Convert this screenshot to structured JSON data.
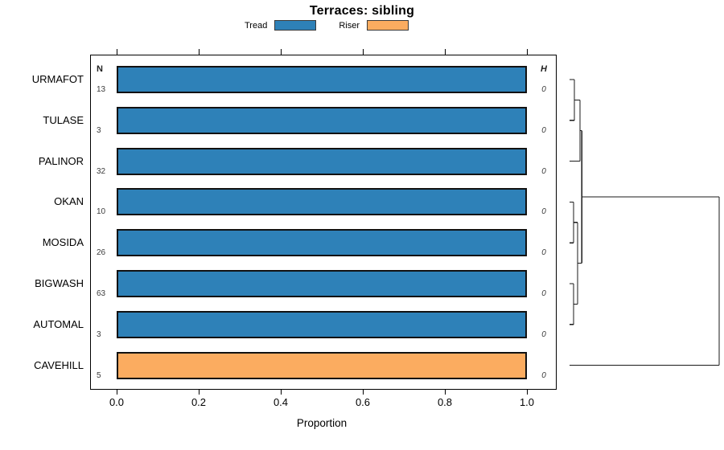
{
  "title": "Terraces: sibling",
  "legend": {
    "items": [
      {
        "label": "Tread",
        "color": "#2E81B8"
      },
      {
        "label": "Riser",
        "color": "#FBAC60"
      }
    ]
  },
  "table": {
    "n_header": "N",
    "h_header": "H"
  },
  "axis": {
    "xlabel": "Proportion",
    "xtick_labels": [
      "0.0",
      "0.2",
      "0.4",
      "0.6",
      "0.8",
      "1.0"
    ]
  },
  "chart_data": {
    "type": "bar",
    "orientation": "horizontal_stacked_proportion",
    "title": "Terraces: sibling",
    "xlabel": "Proportion",
    "xlim": [
      0.0,
      1.0
    ],
    "xticks": [
      0.0,
      0.2,
      0.4,
      0.6,
      0.8,
      1.0
    ],
    "grid": false,
    "legend_position": "top-center",
    "categories": [
      "URMAFOT",
      "TULASE",
      "PALINOR",
      "OKAN",
      "MOSIDA",
      "BIGWASH",
      "AUTOMAL",
      "CAVEHILL"
    ],
    "n_values": [
      13,
      3,
      32,
      10,
      26,
      63,
      3,
      5
    ],
    "h_values": [
      0,
      0,
      0,
      0,
      0,
      0,
      0,
      0
    ],
    "series": [
      {
        "name": "Tread",
        "color": "#2E81B8",
        "values": [
          1.0,
          1.0,
          1.0,
          1.0,
          1.0,
          1.0,
          1.0,
          0.0
        ]
      },
      {
        "name": "Riser",
        "color": "#FBAC60",
        "values": [
          0.0,
          0.0,
          0.0,
          0.0,
          0.0,
          0.0,
          0.0,
          1.0
        ]
      }
    ],
    "bar_border_color": "#111111",
    "dendrogram": {
      "position": "right-margin",
      "merges": [
        {
          "id": "m1",
          "children": [
            "URMAFOT",
            "TULASE"
          ],
          "height": 0.022
        },
        {
          "id": "m2",
          "children": [
            "m1",
            "PALINOR"
          ],
          "height": 0.06
        },
        {
          "id": "m3",
          "children": [
            "OKAN",
            "MOSIDA"
          ],
          "height": 0.016
        },
        {
          "id": "m4",
          "children": [
            "BIGWASH",
            "AUTOMAL"
          ],
          "height": 0.016
        },
        {
          "id": "m5",
          "children": [
            "m3",
            "m4"
          ],
          "height": 0.043
        },
        {
          "id": "m6",
          "children": [
            "m2",
            "m5"
          ],
          "height": 0.072
        },
        {
          "id": "root",
          "children": [
            "m6",
            "CAVEHILL"
          ],
          "height": 1.0
        }
      ]
    }
  }
}
